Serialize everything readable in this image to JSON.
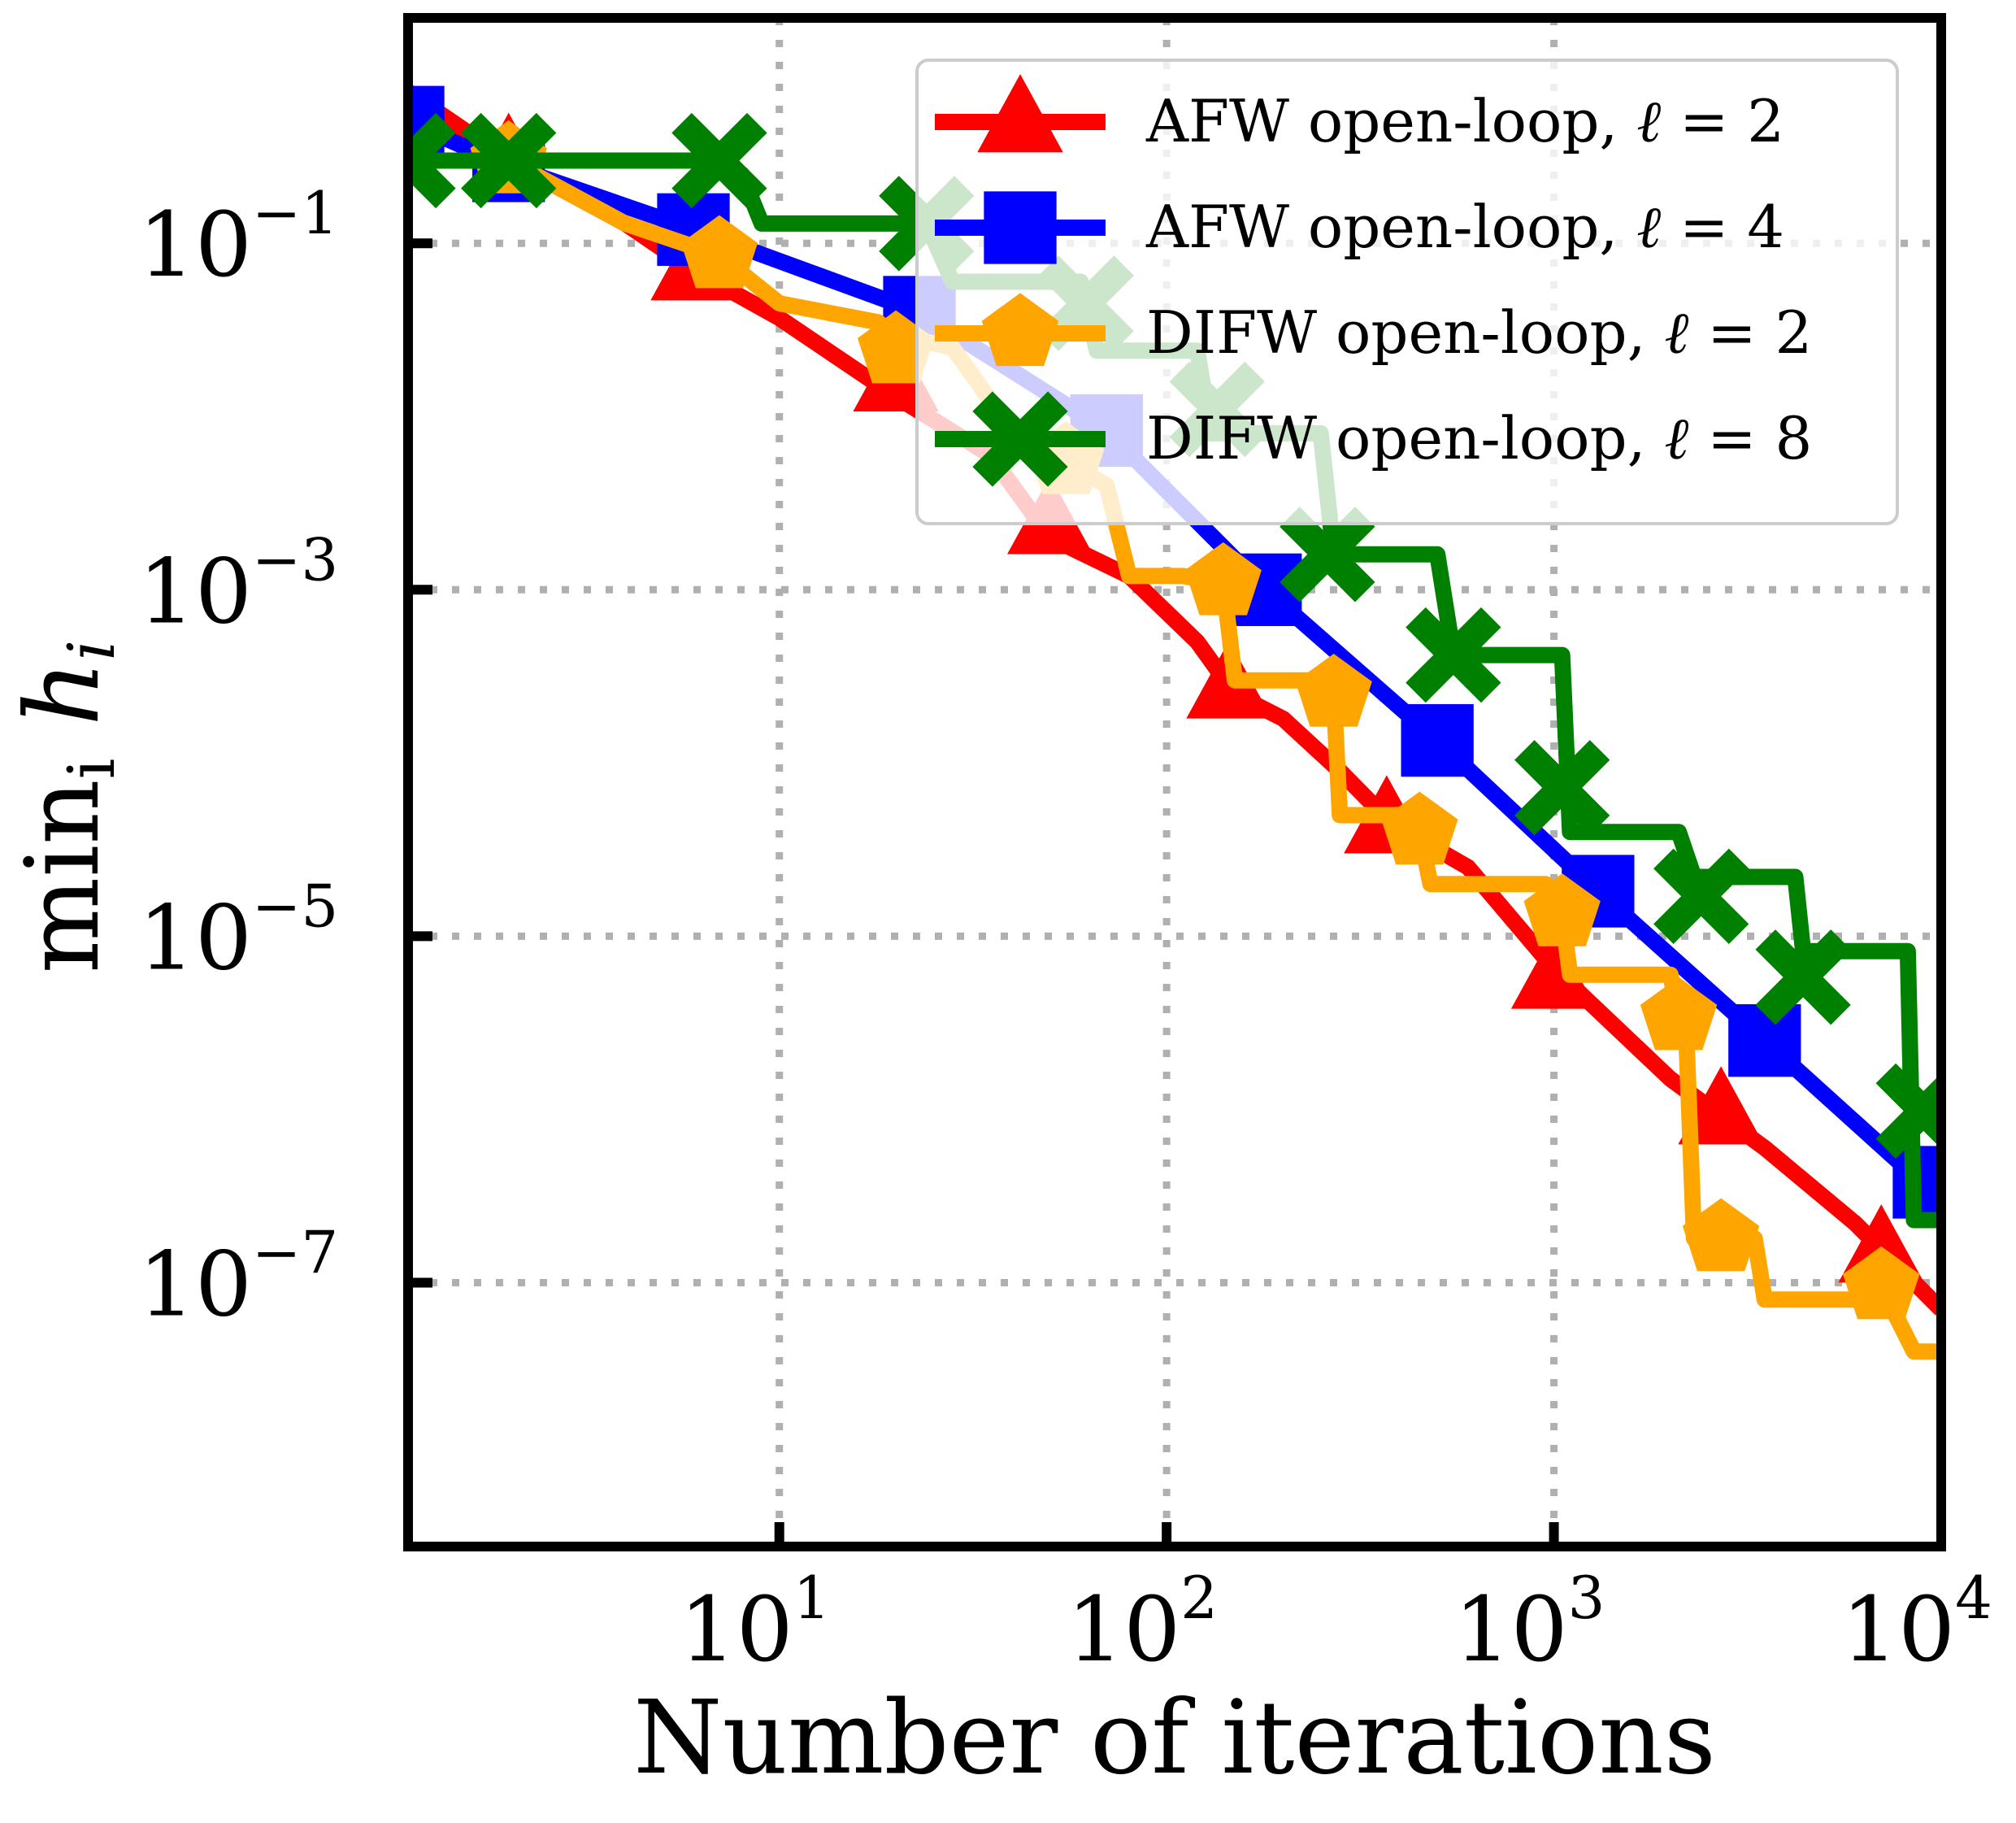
{
  "chart_data": {
    "type": "line",
    "xscale": "log",
    "yscale": "log",
    "xlim": [
      1.1,
      10000
    ],
    "ylim": [
      3e-09,
      2
    ],
    "xlabel": "Number of iterations",
    "ylabel": "min_i h_i",
    "ylabel_parts": {
      "main": "min",
      "sub": "i",
      "var": " h",
      "var_sub": "i"
    },
    "grid": true,
    "legend_position": "top-right",
    "x_ticks": [
      {
        "value": 10,
        "base": "10",
        "exp": "1"
      },
      {
        "value": 100,
        "base": "10",
        "exp": "2"
      },
      {
        "value": 1000,
        "base": "10",
        "exp": "3"
      },
      {
        "value": 10000,
        "base": "10",
        "exp": "4"
      }
    ],
    "y_ticks": [
      {
        "value": 0.1,
        "base": "10",
        "exp": "−1"
      },
      {
        "value": 0.001,
        "base": "10",
        "exp": "−3"
      },
      {
        "value": 1e-05,
        "base": "10",
        "exp": "−5"
      },
      {
        "value": 1e-07,
        "base": "10",
        "exp": "−7"
      }
    ],
    "series": [
      {
        "name": "AFW open-loop, ℓ = 2",
        "label_prefix": "AFW open-loop, ",
        "label_var": "ℓ",
        "label_rest": " = 2",
        "color": "#ff0000",
        "marker": "triangle",
        "step": false,
        "line": [
          [
            1.1,
            0.75
          ],
          [
            2,
            0.3
          ],
          [
            4,
            0.13
          ],
          [
            6,
            0.07
          ],
          [
            10,
            0.037
          ],
          [
            20,
            0.013
          ],
          [
            35,
            0.006
          ],
          [
            50,
            0.002
          ],
          [
            80,
            0.0012
          ],
          [
            120,
            0.0005
          ],
          [
            150,
            0.00025
          ],
          [
            200,
            0.00018
          ],
          [
            280,
            9e-05
          ],
          [
            380,
            4.5e-05
          ],
          [
            600,
            2.5e-05
          ],
          [
            1000,
            6.5e-06
          ],
          [
            2000,
            1.5e-06
          ],
          [
            3500,
            6e-07
          ],
          [
            6000,
            2.2e-07
          ],
          [
            10000,
            7e-08
          ]
        ],
        "markers": [
          [
            2,
            0.3
          ],
          [
            6,
            0.07
          ],
          [
            20,
            0.016
          ],
          [
            50,
            0.0024
          ],
          [
            145,
            0.00027
          ],
          [
            370,
            4.5e-05
          ],
          [
            1000,
            5.7e-06
          ],
          [
            2700,
            9.4e-07
          ],
          [
            7000,
            1.5e-07
          ]
        ]
      },
      {
        "name": "AFW open-loop, ℓ = 4",
        "label_prefix": "AFW open-loop, ",
        "label_var": "ℓ",
        "label_rest": " = 4",
        "color": "#0000ff",
        "marker": "square",
        "step": false,
        "line": [
          [
            1.1,
            0.5
          ],
          [
            2,
            0.28
          ],
          [
            6,
            0.12
          ],
          [
            23,
            0.04
          ],
          [
            70,
            0.0083
          ],
          [
            180,
            0.001
          ],
          [
            500,
            0.000135
          ],
          [
            1300,
            1.82e-05
          ],
          [
            3500,
            2.5e-06
          ],
          [
            10000,
            3e-07
          ]
        ],
        "markers": [
          [
            1.1,
            0.5
          ],
          [
            2,
            0.28
          ],
          [
            6,
            0.12
          ],
          [
            23,
            0.04
          ],
          [
            70,
            0.0083
          ],
          [
            180,
            0.001
          ],
          [
            500,
            0.000135
          ],
          [
            1300,
            1.82e-05
          ],
          [
            3500,
            2.5e-06
          ],
          [
            9300,
            3.8e-07
          ]
        ]
      },
      {
        "name": "DIFW open-loop, ℓ = 2",
        "label_prefix": "DIFW open-loop, ",
        "label_var": "ℓ",
        "label_rest": " = 2",
        "color": "#ffa500",
        "marker": "pentagon",
        "step": false,
        "line": [
          [
            2,
            0.3
          ],
          [
            4,
            0.13
          ],
          [
            7,
            0.085
          ],
          [
            10,
            0.045
          ],
          [
            18,
            0.035
          ],
          [
            21,
            0.025
          ],
          [
            24,
            0.027
          ],
          [
            28,
            0.025
          ],
          [
            33,
            0.015
          ],
          [
            40,
            0.008
          ],
          [
            55,
            0.0055
          ],
          [
            70,
            0.004
          ],
          [
            80,
            0.0012
          ],
          [
            110,
            0.0012
          ],
          [
            140,
            0.0011
          ],
          [
            150,
            0.0003
          ],
          [
            250,
            0.0003
          ],
          [
            270,
            0.00025
          ],
          [
            280,
            5e-05
          ],
          [
            430,
            5e-05
          ],
          [
            450,
            4e-05
          ],
          [
            480,
            2e-05
          ],
          [
            950,
            2e-05
          ],
          [
            1050,
            1.35e-05
          ],
          [
            1100,
            6e-06
          ],
          [
            2000,
            6e-06
          ],
          [
            2100,
            3.4e-06
          ],
          [
            2200,
            2.5e-06
          ],
          [
            2300,
            1.8e-07
          ],
          [
            3300,
            1.8e-07
          ],
          [
            3500,
            8e-08
          ],
          [
            6500,
            8e-08
          ],
          [
            7000,
            9.5e-08
          ],
          [
            8500,
            4e-08
          ],
          [
            10000,
            4e-08
          ]
        ],
        "markers": [
          [
            2,
            0.3
          ],
          [
            7,
            0.085
          ],
          [
            20,
            0.024
          ],
          [
            55,
            0.0055
          ],
          [
            140,
            0.0011
          ],
          [
            270,
            0.00025
          ],
          [
            450,
            4e-05
          ],
          [
            1050,
            1.35e-05
          ],
          [
            2100,
            3.4e-06
          ],
          [
            2700,
            1.8e-07
          ],
          [
            7000,
            9.5e-08
          ]
        ]
      },
      {
        "name": "DIFW open-loop, ℓ = 8",
        "label_prefix": "DIFW open-loop, ",
        "label_var": "ℓ",
        "label_rest": " = 8",
        "color": "#008000",
        "marker": "x",
        "step": false,
        "line": [
          [
            1.1,
            0.3
          ],
          [
            7,
            0.3
          ],
          [
            8,
            0.25
          ],
          [
            9,
            0.13
          ],
          [
            24,
            0.13
          ],
          [
            28,
            0.06
          ],
          [
            35,
            0.06
          ],
          [
            60,
            0.06
          ],
          [
            66,
            0.024
          ],
          [
            120,
            0.024
          ],
          [
            130,
            0.008
          ],
          [
            250,
            0.008
          ],
          [
            270,
            0.0016
          ],
          [
            500,
            0.0016
          ],
          [
            550,
            0.00042
          ],
          [
            1050,
            0.00042
          ],
          [
            1100,
            4e-05
          ],
          [
            2100,
            4e-05
          ],
          [
            2300,
            2.2e-05
          ],
          [
            4200,
            2.2e-05
          ],
          [
            4400,
            8.2e-06
          ],
          [
            8200,
            8.2e-06
          ],
          [
            8500,
            2.3e-07
          ],
          [
            10000,
            2.3e-07
          ]
        ],
        "markers": [
          [
            1.1,
            0.3
          ],
          [
            2,
            0.3
          ],
          [
            7,
            0.3
          ],
          [
            24,
            0.13
          ],
          [
            62,
            0.045
          ],
          [
            135,
            0.011
          ],
          [
            260,
            0.0016
          ],
          [
            550,
            0.00042
          ],
          [
            1050,
            7.2e-05
          ],
          [
            2400,
            1.7e-05
          ],
          [
            4400,
            5.8e-06
          ],
          [
            9000,
            9.8e-07
          ]
        ]
      }
    ]
  }
}
